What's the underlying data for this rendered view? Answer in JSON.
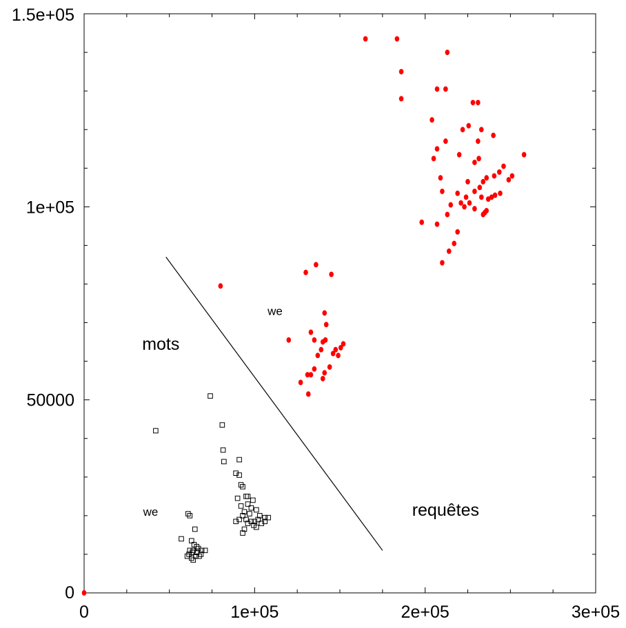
{
  "chart_data": {
    "type": "scatter",
    "title": "",
    "xlabel": "",
    "ylabel": "",
    "xlim": [
      0,
      300000
    ],
    "ylim": [
      0,
      150000
    ],
    "grid": false,
    "x_ticks": [
      {
        "value": 0,
        "label": "0"
      },
      {
        "value": 100000,
        "label": "1e+05"
      },
      {
        "value": 200000,
        "label": "2e+05"
      },
      {
        "value": 300000,
        "label": "3e+05"
      }
    ],
    "y_ticks": [
      {
        "value": 0,
        "label": "0"
      },
      {
        "value": 50000,
        "label": "50000"
      },
      {
        "value": 100000,
        "label": "1e+05"
      },
      {
        "value": 150000,
        "label": "1.5e+05"
      }
    ],
    "annotations": [
      {
        "text": "mots",
        "x": 45000,
        "y": 63000,
        "size": "large"
      },
      {
        "text": "requêtes",
        "x": 212000,
        "y": 20000,
        "size": "large"
      },
      {
        "text": "we",
        "x": 112000,
        "y": 72000,
        "size": "small"
      },
      {
        "text": "we",
        "x": 39000,
        "y": 20000,
        "size": "small"
      }
    ],
    "separator_line": {
      "x": [
        48000,
        175000
      ],
      "y": [
        87000,
        11000
      ],
      "color": "#000000"
    },
    "series": [
      {
        "marker": "circle",
        "color": "#ff0000",
        "points": [
          [
            165000,
            143500
          ],
          [
            183500,
            143500
          ],
          [
            213000,
            140000
          ],
          [
            186000,
            135000
          ],
          [
            186000,
            128000
          ],
          [
            207000,
            130500
          ],
          [
            212000,
            130500
          ],
          [
            228000,
            127000
          ],
          [
            231000,
            127000
          ],
          [
            204000,
            122500
          ],
          [
            222000,
            120000
          ],
          [
            225500,
            121000
          ],
          [
            233000,
            120000
          ],
          [
            207000,
            115000
          ],
          [
            212000,
            117000
          ],
          [
            231000,
            117000
          ],
          [
            240000,
            118500
          ],
          [
            258000,
            113500
          ],
          [
            205000,
            112500
          ],
          [
            220000,
            113500
          ],
          [
            229000,
            111500
          ],
          [
            231500,
            112500
          ],
          [
            236000,
            107500
          ],
          [
            240500,
            108000
          ],
          [
            243500,
            109000
          ],
          [
            246000,
            110500
          ],
          [
            209000,
            107500
          ],
          [
            225000,
            106500
          ],
          [
            232000,
            105000
          ],
          [
            234000,
            106500
          ],
          [
            249000,
            107000
          ],
          [
            251000,
            108000
          ],
          [
            210000,
            104000
          ],
          [
            219000,
            103500
          ],
          [
            224000,
            102500
          ],
          [
            229000,
            104000
          ],
          [
            237000,
            102000
          ],
          [
            239000,
            102500
          ],
          [
            241000,
            103000
          ],
          [
            244000,
            103500
          ],
          [
            221000,
            101000
          ],
          [
            226000,
            101000
          ],
          [
            233000,
            102500
          ],
          [
            215000,
            100500
          ],
          [
            223000,
            100000
          ],
          [
            229000,
            99500
          ],
          [
            236000,
            99000
          ],
          [
            198000,
            96000
          ],
          [
            207000,
            95500
          ],
          [
            213000,
            98000
          ],
          [
            234000,
            98000
          ],
          [
            235000,
            98500
          ],
          [
            219000,
            93500
          ],
          [
            217000,
            90500
          ],
          [
            214000,
            88500
          ],
          [
            210000,
            85500
          ],
          [
            80000,
            79500
          ],
          [
            130000,
            83000
          ],
          [
            136000,
            85000
          ],
          [
            145000,
            82500
          ],
          [
            141000,
            72500
          ],
          [
            142000,
            69500
          ],
          [
            133000,
            67500
          ],
          [
            120000,
            65500
          ],
          [
            135000,
            65500
          ],
          [
            140000,
            65000
          ],
          [
            141500,
            65500
          ],
          [
            152000,
            64500
          ],
          [
            150500,
            63500
          ],
          [
            139000,
            63000
          ],
          [
            147500,
            63000
          ],
          [
            146000,
            62000
          ],
          [
            149000,
            61500
          ],
          [
            137000,
            61500
          ],
          [
            144000,
            58500
          ],
          [
            141000,
            57000
          ],
          [
            135000,
            58000
          ],
          [
            131000,
            56500
          ],
          [
            133000,
            56500
          ],
          [
            140000,
            55500
          ],
          [
            127000,
            54500
          ],
          [
            131500,
            51500
          ],
          [
            0,
            0
          ]
        ]
      },
      {
        "marker": "square",
        "color": "#000000",
        "points": [
          [
            74000,
            51000
          ],
          [
            81000,
            43500
          ],
          [
            42000,
            42000
          ],
          [
            81500,
            37000
          ],
          [
            82000,
            34000
          ],
          [
            91000,
            34500
          ],
          [
            89000,
            31000
          ],
          [
            91000,
            30500
          ],
          [
            92000,
            28000
          ],
          [
            93000,
            27500
          ],
          [
            95000,
            25000
          ],
          [
            96000,
            25000
          ],
          [
            99000,
            24000
          ],
          [
            90000,
            24500
          ],
          [
            92000,
            22500
          ],
          [
            96000,
            23000
          ],
          [
            98000,
            22000
          ],
          [
            101000,
            21500
          ],
          [
            94000,
            21000
          ],
          [
            93000,
            20000
          ],
          [
            97000,
            20500
          ],
          [
            103000,
            20000
          ],
          [
            106000,
            19500
          ],
          [
            108000,
            19500
          ],
          [
            91000,
            19000
          ],
          [
            95000,
            19000
          ],
          [
            98000,
            18500
          ],
          [
            100000,
            18500
          ],
          [
            102000,
            19000
          ],
          [
            96000,
            18000
          ],
          [
            99500,
            17500
          ],
          [
            101000,
            17000
          ],
          [
            104000,
            18000
          ],
          [
            106000,
            18500
          ],
          [
            89000,
            18500
          ],
          [
            94000,
            16500
          ],
          [
            93000,
            15500
          ],
          [
            61000,
            20500
          ],
          [
            62000,
            20000
          ],
          [
            65000,
            16500
          ],
          [
            57000,
            14000
          ],
          [
            63000,
            13500
          ],
          [
            64500,
            12500
          ],
          [
            66000,
            12000
          ],
          [
            62000,
            11000
          ],
          [
            64000,
            11000
          ],
          [
            67000,
            11500
          ],
          [
            69000,
            11000
          ],
          [
            71000,
            11000
          ],
          [
            61500,
            10000
          ],
          [
            63500,
            10500
          ],
          [
            66000,
            10500
          ],
          [
            68500,
            10000
          ],
          [
            60500,
            9500
          ],
          [
            63000,
            9000
          ],
          [
            65500,
            9500
          ],
          [
            67500,
            9500
          ],
          [
            64000,
            8500
          ]
        ]
      }
    ]
  }
}
